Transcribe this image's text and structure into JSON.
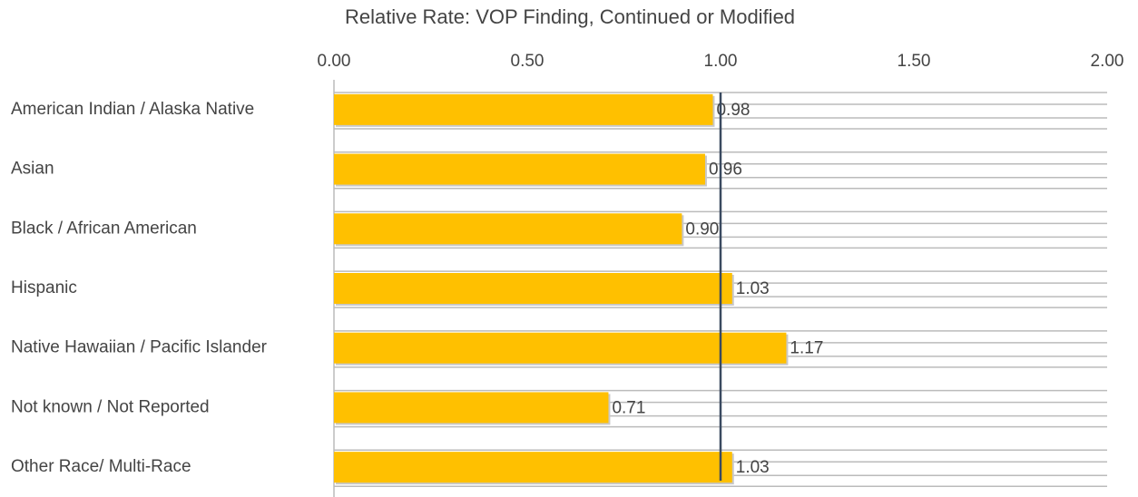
{
  "chart_data": {
    "type": "hbar",
    "title": "Relative Rate: VOP Finding, Continued or Modified",
    "categories": [
      "American Indian / Alaska Native",
      "Asian",
      "Black / African American",
      "Hispanic",
      "Native Hawaiian / Pacific Islander",
      "Not known / Not Reported",
      "Other Race/ Multi-Race"
    ],
    "values": [
      0.98,
      0.96,
      0.9,
      1.03,
      1.17,
      0.71,
      1.03
    ],
    "value_labels": [
      "0.98",
      "0.96",
      "0.90",
      "1.03",
      "1.17",
      "0.71",
      "1.03"
    ],
    "color": "#ffc000",
    "xlim": [
      0,
      2
    ],
    "xticks": [
      {
        "value": 0,
        "label": "0.00"
      },
      {
        "value": 0.5,
        "label": "0.50"
      },
      {
        "value": 1,
        "label": "1.00"
      },
      {
        "value": 1.5,
        "label": "1.50"
      },
      {
        "value": 2,
        "label": "2.00"
      }
    ],
    "reference_line": 1,
    "reference_color": "#3a4a60"
  }
}
